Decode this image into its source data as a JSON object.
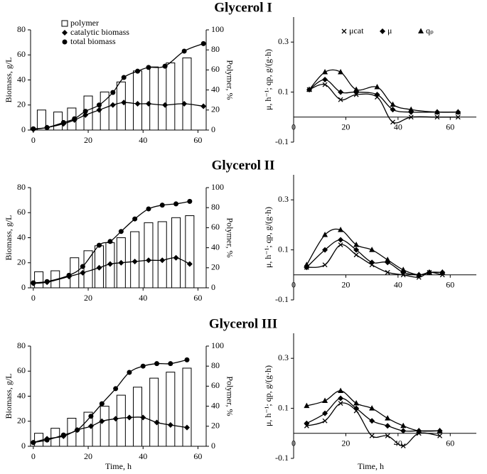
{
  "chart_data": [
    {
      "type": "combo",
      "title": "Glycerol I",
      "ylabel": "Biomass, g/L",
      "y2label": "Polymer, %",
      "legend": "top-left",
      "xlim": [
        -1,
        63
      ],
      "xticks": [
        0,
        20,
        40,
        60
      ],
      "ylim": [
        0,
        80
      ],
      "yticks": [
        0,
        20,
        40,
        60,
        80
      ],
      "y2lim": [
        0,
        100
      ],
      "y2ticks": [
        0,
        20,
        40,
        60,
        80,
        100
      ],
      "series": [
        {
          "name": "polymer",
          "type": "bar",
          "axis": "y2",
          "x": [
            3,
            9,
            14,
            20,
            26,
            32,
            38,
            44,
            50,
            56
          ],
          "values": [
            20,
            18,
            22,
            34,
            38,
            48,
            59,
            63,
            67,
            72
          ]
        },
        {
          "name": "catalytic biomass",
          "marker": "diamond",
          "x": [
            0,
            5,
            11,
            15,
            19,
            24,
            29,
            33,
            38,
            42,
            48,
            55,
            62
          ],
          "values": [
            0.5,
            2,
            5,
            8,
            12,
            16,
            20,
            22,
            21,
            21,
            20,
            21,
            19
          ]
        },
        {
          "name": "total biomass",
          "marker": "circle",
          "x": [
            0,
            5,
            11,
            15,
            19,
            24,
            29,
            33,
            38,
            42,
            48,
            55,
            62
          ],
          "values": [
            1,
            2,
            6,
            9,
            15,
            20,
            30,
            42,
            47,
            50,
            51,
            63,
            69
          ]
        }
      ]
    },
    {
      "type": "scatter",
      "ylabel": "μ, h⁻¹; qp, g/(g·h)",
      "legend": "top",
      "xlim": [
        0,
        70
      ],
      "xticks": [
        0,
        20,
        40,
        60
      ],
      "ylim": [
        -0.1,
        0.4
      ],
      "yticks": [
        -0.1,
        0.1,
        0.3
      ],
      "series": [
        {
          "name": "μcat",
          "marker": "cross",
          "x": [
            6,
            12,
            18,
            24,
            32,
            38,
            45,
            55,
            63
          ],
          "values": [
            0.11,
            0.13,
            0.07,
            0.09,
            0.08,
            -0.02,
            0.0,
            0.0,
            0.0
          ]
        },
        {
          "name": "μ",
          "marker": "diamond",
          "x": [
            6,
            12,
            18,
            24,
            32,
            38,
            45,
            55,
            63
          ],
          "values": [
            0.11,
            0.15,
            0.1,
            0.1,
            0.09,
            0.03,
            0.02,
            0.02,
            0.02
          ]
        },
        {
          "name": "qₚ",
          "marker": "triangle",
          "x": [
            6,
            12,
            18,
            24,
            32,
            38,
            45,
            55,
            63
          ],
          "values": [
            0.11,
            0.18,
            0.18,
            0.11,
            0.12,
            0.05,
            0.03,
            0.02,
            0.02
          ]
        }
      ]
    },
    {
      "type": "combo",
      "title": "Glycerol II",
      "ylabel": "Biomass, g/L",
      "y2label": "Polymer, %",
      "xlim": [
        -1,
        63
      ],
      "xticks": [
        0,
        20,
        40,
        60
      ],
      "ylim": [
        0,
        80
      ],
      "yticks": [
        0,
        20,
        40,
        60,
        80
      ],
      "y2lim": [
        0,
        100
      ],
      "y2ticks": [
        0,
        20,
        40,
        60,
        80,
        100
      ],
      "series": [
        {
          "type": "bar",
          "axis": "y2",
          "x": [
            2,
            8,
            15,
            20,
            24,
            28,
            32,
            37,
            42,
            47,
            52,
            57
          ],
          "values": [
            16,
            17,
            30,
            37,
            42,
            45,
            50,
            56,
            65,
            66,
            70,
            72
          ]
        },
        {
          "marker": "diamond",
          "x": [
            0,
            5,
            13,
            18,
            24,
            28,
            32,
            37,
            42,
            47,
            52,
            57
          ],
          "values": [
            3.5,
            4.5,
            9,
            12,
            16,
            19,
            20,
            21,
            22,
            22,
            24,
            19
          ]
        },
        {
          "marker": "circle",
          "x": [
            0,
            5,
            13,
            18,
            24,
            28,
            32,
            37,
            42,
            47,
            52,
            57
          ],
          "values": [
            4,
            5,
            10,
            17,
            34,
            37,
            45,
            55,
            63,
            66,
            67,
            69
          ]
        }
      ]
    },
    {
      "type": "scatter",
      "ylabel": "μ, h⁻¹; qp, g/(g·h)",
      "xlim": [
        0,
        70
      ],
      "xticks": [
        0,
        20,
        40,
        60
      ],
      "ylim": [
        -0.1,
        0.4
      ],
      "yticks": [
        -0.1,
        0.1,
        0.3
      ],
      "series": [
        {
          "marker": "cross",
          "x": [
            5,
            12,
            18,
            24,
            30,
            36,
            42,
            48,
            52,
            57
          ],
          "values": [
            0.03,
            0.04,
            0.12,
            0.08,
            0.04,
            0.01,
            0.0,
            -0.01,
            0.01,
            0.0
          ]
        },
        {
          "marker": "diamond",
          "x": [
            5,
            12,
            18,
            24,
            30,
            36,
            42,
            48,
            52,
            57
          ],
          "values": [
            0.03,
            0.1,
            0.14,
            0.1,
            0.05,
            0.05,
            0.01,
            0.0,
            0.01,
            0.01
          ]
        },
        {
          "marker": "triangle",
          "x": [
            5,
            12,
            18,
            24,
            30,
            36,
            42,
            48,
            52,
            57
          ],
          "values": [
            0.04,
            0.16,
            0.18,
            0.12,
            0.1,
            0.06,
            0.02,
            0.0,
            0.01,
            0.01
          ]
        }
      ]
    },
    {
      "type": "combo",
      "title": "Glycerol III",
      "ylabel": "Biomass, g/L",
      "y2label": "Polymer, %",
      "xlabel": "Time, h",
      "xlim": [
        -1,
        63
      ],
      "xticks": [
        0,
        20,
        40,
        60
      ],
      "ylim": [
        0,
        80
      ],
      "yticks": [
        0,
        20,
        40,
        60,
        80
      ],
      "y2lim": [
        0,
        100
      ],
      "y2ticks": [
        0,
        20,
        40,
        60,
        80,
        100
      ],
      "series": [
        {
          "type": "bar",
          "axis": "y2",
          "x": [
            2,
            8,
            14,
            20,
            26,
            32,
            38,
            44,
            50,
            56
          ],
          "values": [
            13,
            18,
            28,
            34,
            40,
            51,
            59,
            68,
            74,
            78
          ]
        },
        {
          "marker": "diamond",
          "x": [
            0,
            5,
            11,
            16,
            21,
            25,
            30,
            35,
            40,
            45,
            50,
            56
          ],
          "values": [
            3,
            6,
            8,
            13,
            16,
            20,
            22,
            23,
            23,
            19,
            17,
            15
          ]
        },
        {
          "marker": "circle",
          "x": [
            0,
            5,
            11,
            16,
            21,
            25,
            30,
            35,
            40,
            45,
            50,
            56
          ],
          "values": [
            3,
            5,
            9,
            13,
            24,
            34,
            46,
            59,
            64,
            66,
            66,
            69
          ]
        }
      ]
    },
    {
      "type": "scatter",
      "ylabel": "μ, h⁻¹; qp, g/(g·h)",
      "xlabel": "Time, h",
      "xlim": [
        0,
        70
      ],
      "xticks": [
        0,
        20,
        40,
        60
      ],
      "ylim": [
        -0.1,
        0.4
      ],
      "yticks": [
        -0.1,
        0.1,
        0.3
      ],
      "series": [
        {
          "marker": "cross",
          "x": [
            5,
            12,
            18,
            24,
            30,
            36,
            42,
            48,
            56
          ],
          "values": [
            0.03,
            0.05,
            0.12,
            0.09,
            -0.01,
            -0.01,
            -0.05,
            0.0,
            -0.01
          ]
        },
        {
          "marker": "diamond",
          "x": [
            5,
            12,
            18,
            24,
            30,
            36,
            42,
            48,
            56
          ],
          "values": [
            0.04,
            0.08,
            0.14,
            0.1,
            0.05,
            0.03,
            0.01,
            0.01,
            0.01
          ]
        },
        {
          "marker": "triangle",
          "x": [
            5,
            12,
            18,
            24,
            30,
            36,
            42,
            48,
            56
          ],
          "values": [
            0.11,
            0.13,
            0.17,
            0.12,
            0.1,
            0.06,
            0.03,
            0.01,
            0.01
          ]
        }
      ]
    }
  ]
}
